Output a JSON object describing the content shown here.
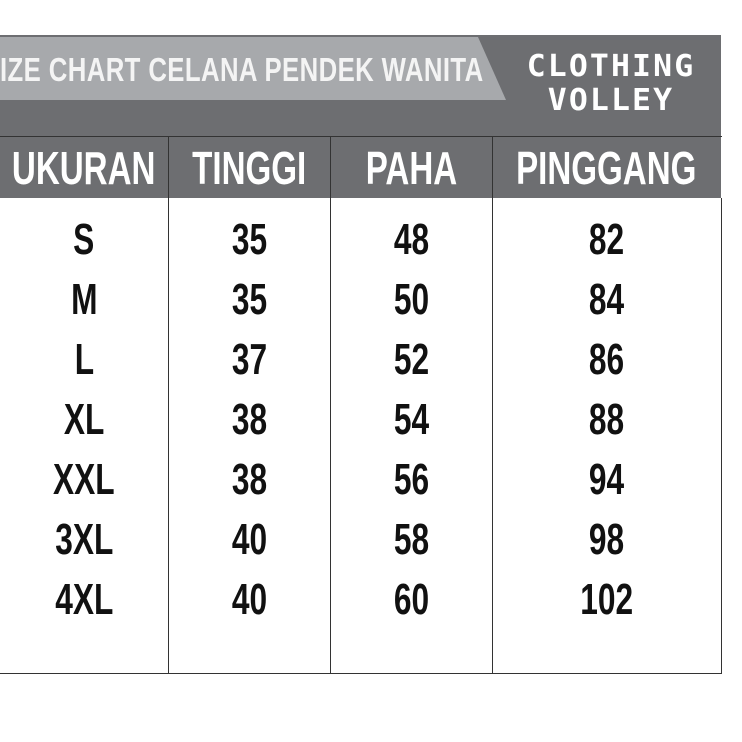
{
  "banner": {
    "title": "IZE CHART CELANA PENDEK WANITA"
  },
  "logo": {
    "line1": "CLOTHING",
    "line2": "VOLLEY"
  },
  "colors": {
    "dark_gray": "#6d6e71",
    "light_gray": "#a7a9ac",
    "text_dark": "#111111",
    "header_text": "#ffffff"
  },
  "table": {
    "headers": [
      "UKURAN",
      "TINGGI",
      "PAHA",
      "PINGGANG"
    ],
    "rows": [
      [
        "S",
        "35",
        "48",
        "82"
      ],
      [
        "M",
        "35",
        "50",
        "84"
      ],
      [
        "L",
        "37",
        "52",
        "86"
      ],
      [
        "XL",
        "38",
        "54",
        "88"
      ],
      [
        "XXL",
        "38",
        "56",
        "94"
      ],
      [
        "3XL",
        "40",
        "58",
        "98"
      ],
      [
        "4XL",
        "40",
        "60",
        "102"
      ]
    ]
  }
}
